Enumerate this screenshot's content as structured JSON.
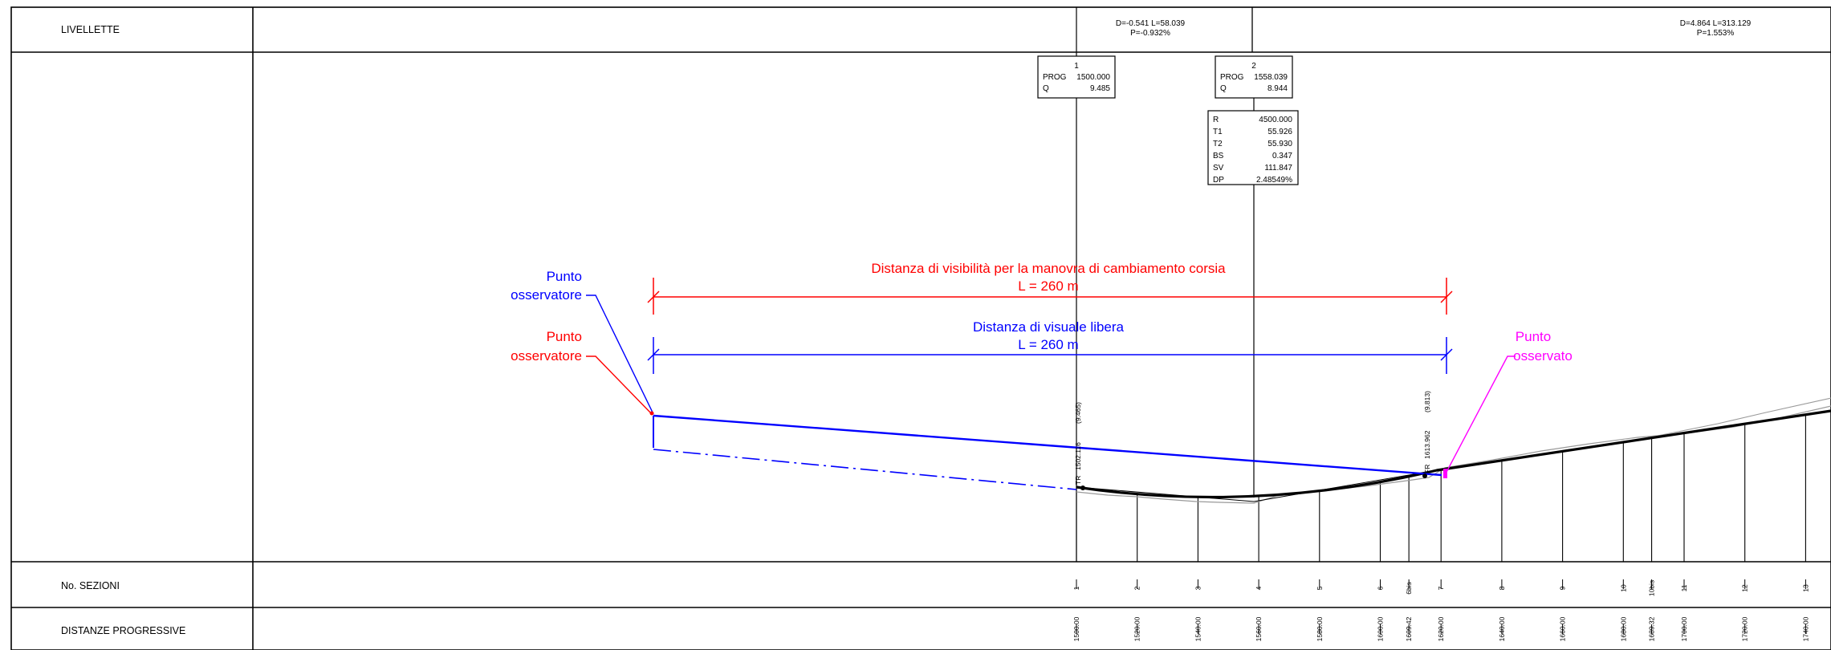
{
  "header": {
    "row_label": "LIVELLETTE",
    "slope1_line1": "D=-0.541 L=58.039",
    "slope1_line2": "P=-0.932%",
    "slope2_line1": "D=4.864 L=313.129",
    "slope2_line2": "P=1.553%"
  },
  "vertices": [
    {
      "num": "1",
      "prog_label": "PROG",
      "prog": "1500.000",
      "q_label": "Q",
      "q": "9.485"
    },
    {
      "num": "2",
      "prog_label": "PROG",
      "prog": "1558.039",
      "q_label": "Q",
      "q": "8.944"
    }
  ],
  "curve": [
    {
      "k": "R",
      "v": "4500.000"
    },
    {
      "k": "T1",
      "v": "55.926"
    },
    {
      "k": "T2",
      "v": "55.930"
    },
    {
      "k": "BS",
      "v": "0.347"
    },
    {
      "k": "SV",
      "v": "111.847"
    },
    {
      "k": "DP",
      "v": "2.48549%"
    }
  ],
  "points": {
    "tr_label": "TR",
    "tr_prog": "1502.116",
    "tr_q": "(9.465)",
    "fr_label": "FR",
    "fr_prog": "1613.962",
    "fr_q": "(9.813)"
  },
  "annotations": {
    "red_title": "Distanza di visibilità per la manovra di cambiamento corsia",
    "red_length": "L = 260 m",
    "blue_title": "Distanza di visuale libera",
    "blue_length": "L = 260 m",
    "blue_obs_line1": "Punto",
    "blue_obs_line2": "osservatore",
    "red_obs_line1": "Punto",
    "red_obs_line2": "osservatore",
    "target_line1": "Punto",
    "target_line2": "osservato"
  },
  "rows": {
    "sections_label": "No. SEZIONI",
    "distances_label": "DISTANZE PROGRESSIVE"
  },
  "sections": [
    "1",
    "2",
    "3",
    "4",
    "5",
    "6",
    "6bis",
    "7",
    "8",
    "9",
    "10",
    "10bis",
    "11",
    "12",
    "13"
  ],
  "distances": [
    "1500.00",
    "1520.00",
    "1540.00",
    "1560.00",
    "1580.00",
    "1600.00",
    "1609.42",
    "1620.00",
    "1640.00",
    "1660.00",
    "1680.00",
    "1689.32",
    "1700.00",
    "1720.00",
    "1740.00"
  ],
  "colors": {
    "red": "#ff0000",
    "blue": "#0000ff",
    "magenta": "#ff00ff",
    "grid": "#000000",
    "ground": "#9a9a9a"
  }
}
